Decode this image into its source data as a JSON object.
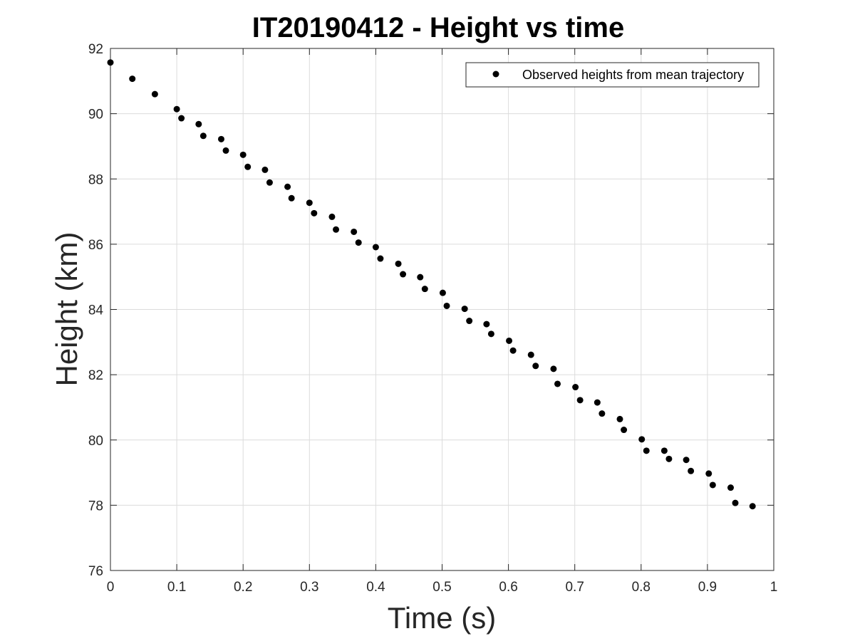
{
  "chart_data": {
    "type": "scatter",
    "title": "IT20190412 - Height vs time",
    "xlabel": "Time (s)",
    "ylabel": "Height (km)",
    "xlim": [
      0,
      1
    ],
    "ylim": [
      76,
      92
    ],
    "xticks": [
      "0",
      "0.1",
      "0.2",
      "0.3",
      "0.4",
      "0.5",
      "0.6",
      "0.7",
      "0.8",
      "0.9",
      "1"
    ],
    "yticks": [
      "76",
      "78",
      "80",
      "82",
      "84",
      "86",
      "88",
      "90",
      "92"
    ],
    "grid": true,
    "legend_position": "top-right",
    "series": [
      {
        "name": "Observed heights from mean trajectory",
        "marker_color": "#000000",
        "points": [
          [
            0.0,
            91.57
          ],
          [
            0.033,
            91.07
          ],
          [
            0.067,
            90.6
          ],
          [
            0.1,
            90.14
          ],
          [
            0.107,
            89.86
          ],
          [
            0.133,
            89.68
          ],
          [
            0.14,
            89.32
          ],
          [
            0.167,
            89.22
          ],
          [
            0.174,
            88.87
          ],
          [
            0.2,
            88.74
          ],
          [
            0.207,
            88.37
          ],
          [
            0.233,
            88.28
          ],
          [
            0.24,
            87.89
          ],
          [
            0.267,
            87.76
          ],
          [
            0.273,
            87.41
          ],
          [
            0.3,
            87.27
          ],
          [
            0.307,
            86.95
          ],
          [
            0.334,
            86.84
          ],
          [
            0.34,
            86.45
          ],
          [
            0.367,
            86.38
          ],
          [
            0.374,
            86.05
          ],
          [
            0.4,
            85.91
          ],
          [
            0.407,
            85.56
          ],
          [
            0.434,
            85.4
          ],
          [
            0.441,
            85.08
          ],
          [
            0.467,
            84.99
          ],
          [
            0.474,
            84.63
          ],
          [
            0.501,
            84.51
          ],
          [
            0.507,
            84.11
          ],
          [
            0.534,
            84.02
          ],
          [
            0.541,
            83.65
          ],
          [
            0.567,
            83.55
          ],
          [
            0.574,
            83.25
          ],
          [
            0.601,
            83.04
          ],
          [
            0.607,
            82.74
          ],
          [
            0.634,
            82.61
          ],
          [
            0.641,
            82.27
          ],
          [
            0.668,
            82.18
          ],
          [
            0.674,
            81.72
          ],
          [
            0.701,
            81.62
          ],
          [
            0.708,
            81.22
          ],
          [
            0.734,
            81.15
          ],
          [
            0.741,
            80.81
          ],
          [
            0.768,
            80.64
          ],
          [
            0.774,
            80.31
          ],
          [
            0.801,
            80.02
          ],
          [
            0.808,
            79.67
          ],
          [
            0.835,
            79.67
          ],
          [
            0.842,
            79.42
          ],
          [
            0.868,
            79.39
          ],
          [
            0.875,
            79.05
          ],
          [
            0.902,
            78.97
          ],
          [
            0.908,
            78.62
          ],
          [
            0.935,
            78.54
          ],
          [
            0.942,
            78.07
          ],
          [
            0.968,
            77.97
          ]
        ]
      }
    ]
  }
}
